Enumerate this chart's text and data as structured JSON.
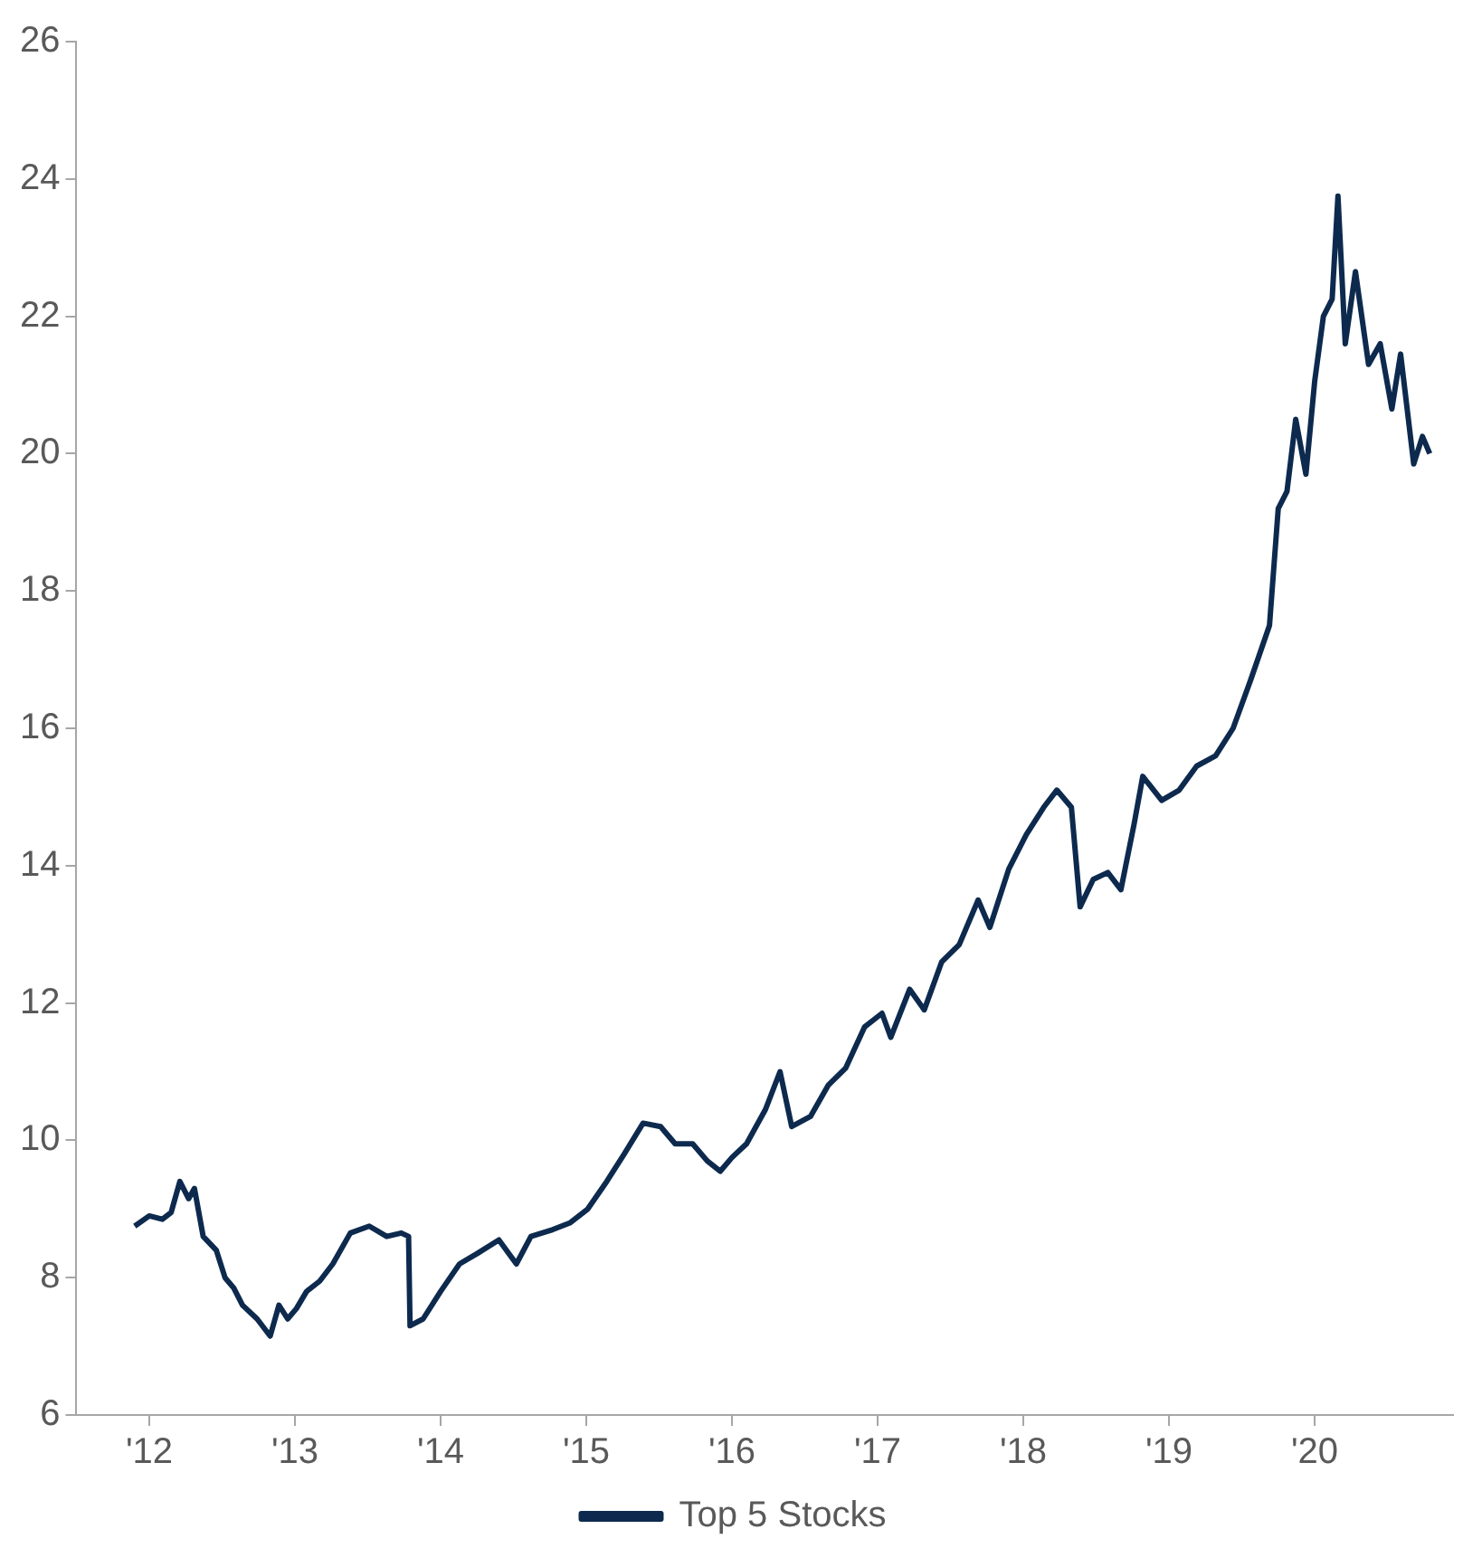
{
  "chart_data": {
    "type": "line",
    "x": [
      2011.9,
      2012.0,
      2012.09,
      2012.15,
      2012.21,
      2012.27,
      2012.31,
      2012.37,
      2012.46,
      2012.52,
      2012.58,
      2012.64,
      2012.74,
      2012.83,
      2012.89,
      2012.95,
      2013.01,
      2013.08,
      2013.17,
      2013.26,
      2013.38,
      2013.51,
      2013.63,
      2013.73,
      2013.78,
      2013.79,
      2013.88,
      2014.0,
      2014.13,
      2014.25,
      2014.4,
      2014.52,
      2014.62,
      2014.77,
      2014.89,
      2015.01,
      2015.14,
      2015.26,
      2015.39,
      2015.51,
      2015.61,
      2015.73,
      2015.83,
      2015.92,
      2016.0,
      2016.1,
      2016.23,
      2016.33,
      2016.41,
      2016.54,
      2016.66,
      2016.78,
      2016.91,
      2017.03,
      2017.09,
      2017.22,
      2017.32,
      2017.44,
      2017.56,
      2017.69,
      2017.77,
      2017.9,
      2018.02,
      2018.14,
      2018.23,
      2018.33,
      2018.39,
      2018.48,
      2018.58,
      2018.67,
      2018.76,
      2018.82,
      2018.95,
      2019.07,
      2019.19,
      2019.32,
      2019.44,
      2019.56,
      2019.69,
      2019.75,
      2019.81,
      2019.87,
      2019.94,
      2020.0,
      2020.06,
      2020.12,
      2020.16,
      2020.21,
      2020.28,
      2020.37,
      2020.45,
      2020.53,
      2020.59,
      2020.68,
      2020.74,
      2020.79
    ],
    "series": [
      {
        "name": "Top 5 Stocks",
        "color": "#0d2a4e",
        "values": [
          8.75,
          8.9,
          8.85,
          8.95,
          9.4,
          9.15,
          9.3,
          8.6,
          8.4,
          8.0,
          7.85,
          7.6,
          7.4,
          7.15,
          7.6,
          7.4,
          7.55,
          7.8,
          7.95,
          8.2,
          8.65,
          8.75,
          8.6,
          8.65,
          8.6,
          7.3,
          7.4,
          7.8,
          8.2,
          8.35,
          8.55,
          8.2,
          8.6,
          8.7,
          8.8,
          9.0,
          9.4,
          9.8,
          10.25,
          10.2,
          9.95,
          9.95,
          9.7,
          9.55,
          9.75,
          9.95,
          10.45,
          11.0,
          10.2,
          10.35,
          10.8,
          11.05,
          11.65,
          11.85,
          11.5,
          12.2,
          11.9,
          12.6,
          12.85,
          13.5,
          13.1,
          13.95,
          14.45,
          14.85,
          15.1,
          14.85,
          13.4,
          13.8,
          13.9,
          13.65,
          14.6,
          15.3,
          14.95,
          15.1,
          15.45,
          15.6,
          16.0,
          16.7,
          17.5,
          19.2,
          19.45,
          20.5,
          19.7,
          21.05,
          22.0,
          22.25,
          23.75,
          21.6,
          22.65,
          21.3,
          21.6,
          20.65,
          21.45,
          19.85,
          20.25,
          20.0
        ]
      }
    ],
    "xlim": [
      2011.5,
      2020.95
    ],
    "xticks": [
      {
        "value": 2012,
        "label": "'12"
      },
      {
        "value": 2013,
        "label": "'13"
      },
      {
        "value": 2014,
        "label": "'14"
      },
      {
        "value": 2015,
        "label": "'15"
      },
      {
        "value": 2016,
        "label": "'16"
      },
      {
        "value": 2017,
        "label": "'17"
      },
      {
        "value": 2018,
        "label": "'18"
      },
      {
        "value": 2019,
        "label": "'19"
      },
      {
        "value": 2020,
        "label": "'20"
      }
    ],
    "ylim": [
      6,
      26
    ],
    "yticks": [
      6,
      8,
      10,
      12,
      14,
      16,
      18,
      20,
      22,
      24,
      26
    ],
    "grid": false,
    "legend": "bottom",
    "marker": "none",
    "line_style": "solid"
  }
}
